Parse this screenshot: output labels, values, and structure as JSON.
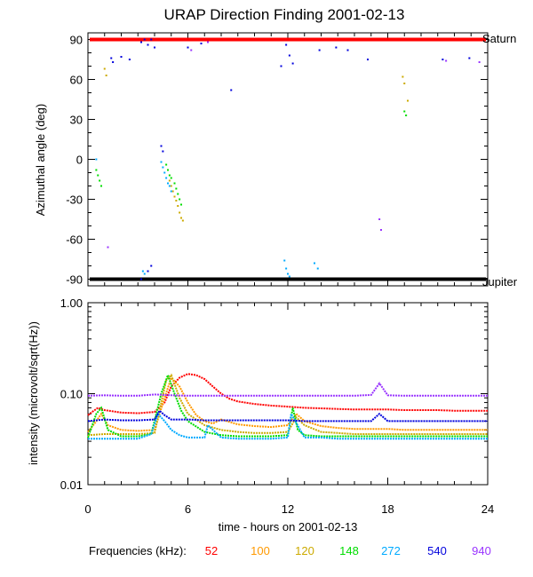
{
  "title": "URAP Direction Finding  2001-02-13",
  "chart_data": [
    {
      "type": "scatter",
      "title": "URAP Direction Finding  2001-02-13",
      "xlabel": "",
      "ylabel": "Azimuthal angle (deg)",
      "xlim": [
        0,
        24
      ],
      "ylim": [
        -95,
        95
      ],
      "y_ticks": [
        90,
        60,
        30,
        0,
        -30,
        -60,
        -90
      ],
      "annotations": [
        {
          "text": "Saturn",
          "x": 24,
          "y": 90
        },
        {
          "text": "Jupiter",
          "x": 24,
          "y": -90
        }
      ],
      "reference_lines": [
        {
          "name": "Saturn",
          "y": 90,
          "color": "#ff0000"
        },
        {
          "name": "Jupiter",
          "y": -90,
          "color": "#000000"
        }
      ],
      "series": [
        {
          "name": "52",
          "color": "#ff0000",
          "points": []
        },
        {
          "name": "100",
          "color": "#ff9900",
          "points": []
        },
        {
          "name": "120",
          "color": "#ccaa00",
          "points": [
            [
              1.0,
              68
            ],
            [
              1.1,
              63
            ],
            [
              4.9,
              -16
            ],
            [
              5.0,
              -20
            ],
            [
              5.1,
              -24
            ],
            [
              5.2,
              -28
            ],
            [
              5.3,
              -31
            ],
            [
              5.4,
              -35
            ],
            [
              5.5,
              -40
            ],
            [
              5.6,
              -44
            ],
            [
              5.7,
              -46
            ],
            [
              18.9,
              62
            ],
            [
              19.0,
              57
            ],
            [
              19.2,
              44
            ]
          ]
        },
        {
          "name": "148",
          "color": "#00dd00",
          "points": [
            [
              0.5,
              -8
            ],
            [
              0.6,
              -12
            ],
            [
              0.7,
              -16
            ],
            [
              0.8,
              -20
            ],
            [
              4.7,
              -4
            ],
            [
              4.8,
              -8
            ],
            [
              4.9,
              -12
            ],
            [
              5.0,
              -14
            ],
            [
              5.2,
              -18
            ],
            [
              5.3,
              -22
            ],
            [
              5.4,
              -26
            ],
            [
              5.5,
              -30
            ],
            [
              5.6,
              -34
            ],
            [
              19.0,
              36
            ],
            [
              19.1,
              33
            ]
          ]
        },
        {
          "name": "272",
          "color": "#00aaff",
          "points": [
            [
              0.5,
              0
            ],
            [
              3.3,
              -84
            ],
            [
              3.4,
              -86
            ],
            [
              4.4,
              -2
            ],
            [
              4.5,
              -6
            ],
            [
              4.6,
              -10
            ],
            [
              4.7,
              -14
            ],
            [
              4.8,
              -18
            ],
            [
              4.9,
              -20
            ],
            [
              5.0,
              -24
            ],
            [
              11.8,
              -76
            ],
            [
              11.9,
              -82
            ],
            [
              12.0,
              -86
            ],
            [
              12.1,
              -88
            ],
            [
              13.6,
              -78
            ],
            [
              13.8,
              -82
            ]
          ]
        },
        {
          "name": "540",
          "color": "#0000dd",
          "points": [
            [
              1.4,
              76
            ],
            [
              1.5,
              73
            ],
            [
              2.0,
              77
            ],
            [
              2.5,
              75
            ],
            [
              3.2,
              88
            ],
            [
              3.4,
              90
            ],
            [
              3.6,
              86
            ],
            [
              3.8,
              90
            ],
            [
              4.0,
              84
            ],
            [
              4.4,
              10
            ],
            [
              4.5,
              6
            ],
            [
              3.2,
              -90
            ],
            [
              3.6,
              -84
            ],
            [
              3.8,
              -80
            ],
            [
              6.0,
              84
            ],
            [
              6.8,
              87
            ],
            [
              8.6,
              52
            ],
            [
              11.6,
              70
            ],
            [
              11.9,
              86
            ],
            [
              12.1,
              78
            ],
            [
              12.3,
              72
            ],
            [
              13.9,
              82
            ],
            [
              14.9,
              84
            ],
            [
              15.6,
              82
            ],
            [
              16.8,
              75
            ],
            [
              21.3,
              75
            ],
            [
              22.9,
              76
            ]
          ]
        },
        {
          "name": "940",
          "color": "#9933ff",
          "points": [
            [
              1.2,
              -66
            ],
            [
              6.2,
              82
            ],
            [
              7.2,
              88
            ],
            [
              17.5,
              -45
            ],
            [
              17.6,
              -53
            ],
            [
              21.5,
              74
            ],
            [
              23.5,
              73
            ]
          ]
        }
      ]
    },
    {
      "type": "line",
      "xlabel": "time - hours on 2001-02-13",
      "ylabel": "intensity (microvolt/sqrt(Hz))",
      "xlim": [
        0,
        24
      ],
      "ylim": [
        0.01,
        1.0
      ],
      "yscale": "log",
      "x_ticks": [
        "0",
        "6",
        "12",
        "18",
        "24"
      ],
      "y_ticks": [
        "1.00",
        "0.10",
        "0.01"
      ],
      "legend_title": "Frequencies (kHz):",
      "series": [
        {
          "name": "52",
          "color": "#ff0000",
          "x": [
            0,
            0.3,
            0.6,
            1,
            2,
            3,
            4,
            4.6,
            5,
            5.5,
            6,
            6.5,
            7,
            7.5,
            8,
            8.5,
            9,
            10,
            11,
            12,
            13,
            14,
            15,
            16,
            17,
            18,
            19,
            20,
            21,
            22,
            23,
            24
          ],
          "values": [
            0.058,
            0.064,
            0.07,
            0.066,
            0.062,
            0.061,
            0.063,
            0.08,
            0.12,
            0.15,
            0.165,
            0.16,
            0.145,
            0.12,
            0.1,
            0.088,
            0.082,
            0.077,
            0.074,
            0.072,
            0.07,
            0.069,
            0.068,
            0.067,
            0.067,
            0.067,
            0.066,
            0.066,
            0.066,
            0.065,
            0.065,
            0.065
          ]
        },
        {
          "name": "100",
          "color": "#ff9900",
          "x": [
            0,
            0.5,
            0.8,
            1.2,
            2,
            3,
            4,
            4.6,
            5,
            5.5,
            6,
            6.5,
            7,
            7.5,
            8,
            9,
            10,
            11,
            12,
            12.5,
            13,
            14,
            15,
            16,
            17,
            18,
            19,
            20,
            21,
            22,
            23,
            24
          ],
          "values": [
            0.038,
            0.05,
            0.06,
            0.045,
            0.04,
            0.039,
            0.04,
            0.09,
            0.15,
            0.12,
            0.08,
            0.058,
            0.05,
            0.047,
            0.052,
            0.046,
            0.044,
            0.043,
            0.045,
            0.06,
            0.05,
            0.044,
            0.042,
            0.041,
            0.041,
            0.041,
            0.04,
            0.04,
            0.04,
            0.04,
            0.04,
            0.04
          ]
        },
        {
          "name": "120",
          "color": "#ccaa00",
          "x": [
            0,
            1,
            2,
            3,
            4,
            4.7,
            5,
            5.5,
            6,
            7,
            8,
            9,
            10,
            11,
            12,
            12.5,
            13,
            14,
            15,
            16,
            17,
            18,
            19,
            20,
            21,
            22,
            23,
            24
          ],
          "values": [
            0.035,
            0.036,
            0.036,
            0.036,
            0.037,
            0.14,
            0.16,
            0.09,
            0.06,
            0.045,
            0.04,
            0.038,
            0.037,
            0.037,
            0.038,
            0.055,
            0.045,
            0.038,
            0.037,
            0.036,
            0.036,
            0.036,
            0.036,
            0.036,
            0.036,
            0.036,
            0.036,
            0.036
          ]
        },
        {
          "name": "148",
          "color": "#00dd00",
          "x": [
            0,
            0.5,
            0.8,
            1.2,
            2,
            3,
            3.8,
            4.4,
            4.8,
            5.2,
            5.6,
            6,
            7,
            8,
            9,
            10,
            11,
            12,
            12.3,
            12.6,
            13,
            14,
            15,
            16,
            17,
            18,
            19,
            20,
            21,
            22,
            23,
            24
          ],
          "values": [
            0.033,
            0.06,
            0.07,
            0.04,
            0.034,
            0.034,
            0.036,
            0.1,
            0.16,
            0.1,
            0.065,
            0.05,
            0.038,
            0.035,
            0.034,
            0.034,
            0.034,
            0.035,
            0.07,
            0.04,
            0.035,
            0.034,
            0.034,
            0.034,
            0.034,
            0.034,
            0.034,
            0.034,
            0.034,
            0.034,
            0.034,
            0.034
          ]
        },
        {
          "name": "272",
          "color": "#00aaff",
          "x": [
            0,
            1,
            2,
            3,
            3.8,
            4.2,
            4.6,
            5,
            5.5,
            6,
            7,
            7.2,
            8,
            9,
            10,
            11,
            12,
            12.2,
            13,
            14,
            15,
            16,
            17,
            18,
            19,
            20,
            21,
            22,
            23,
            24
          ],
          "values": [
            0.032,
            0.032,
            0.032,
            0.032,
            0.036,
            0.06,
            0.05,
            0.04,
            0.035,
            0.033,
            0.033,
            0.045,
            0.033,
            0.032,
            0.032,
            0.032,
            0.033,
            0.06,
            0.033,
            0.033,
            0.032,
            0.032,
            0.032,
            0.032,
            0.032,
            0.032,
            0.032,
            0.032,
            0.032,
            0.032
          ]
        },
        {
          "name": "540",
          "color": "#0000dd",
          "x": [
            0,
            1,
            2,
            3,
            4,
            4.3,
            4.6,
            5,
            6,
            7,
            8,
            9,
            10,
            11,
            12,
            13,
            14,
            15,
            16,
            17,
            17.5,
            18,
            19,
            20,
            21,
            22,
            23,
            24
          ],
          "values": [
            0.05,
            0.052,
            0.051,
            0.051,
            0.052,
            0.065,
            0.058,
            0.052,
            0.052,
            0.051,
            0.051,
            0.051,
            0.051,
            0.051,
            0.051,
            0.05,
            0.05,
            0.05,
            0.05,
            0.05,
            0.06,
            0.05,
            0.05,
            0.05,
            0.05,
            0.05,
            0.05,
            0.05
          ]
        },
        {
          "name": "940",
          "color": "#9933ff",
          "x": [
            0,
            1,
            2,
            3,
            4,
            5,
            6,
            7,
            8,
            9,
            10,
            11,
            12,
            13,
            14,
            15,
            16,
            17,
            17.5,
            18,
            19,
            20,
            21,
            22,
            23,
            24
          ],
          "values": [
            0.095,
            0.096,
            0.095,
            0.095,
            0.098,
            0.096,
            0.095,
            0.095,
            0.095,
            0.095,
            0.095,
            0.095,
            0.095,
            0.095,
            0.095,
            0.095,
            0.095,
            0.097,
            0.13,
            0.096,
            0.095,
            0.095,
            0.095,
            0.095,
            0.095,
            0.095
          ]
        }
      ]
    }
  ]
}
